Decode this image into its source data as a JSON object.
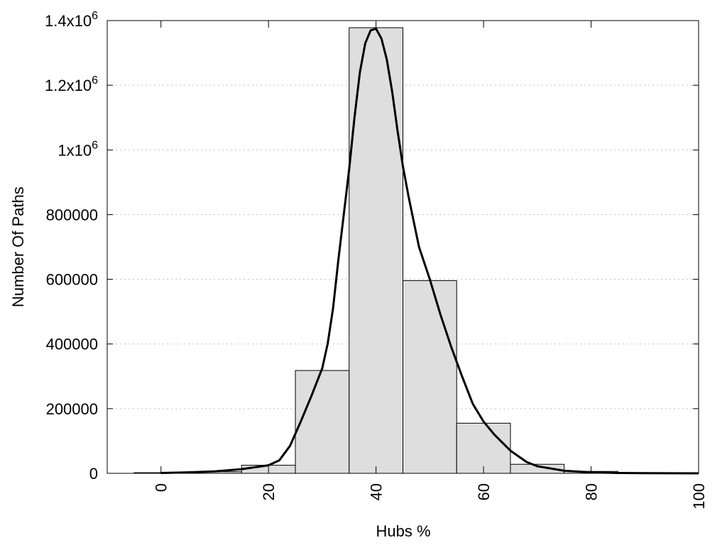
{
  "chart_data": {
    "type": "bar",
    "xlabel": "Hubs %",
    "ylabel": "Number Of Paths",
    "xlim": [
      -10,
      100
    ],
    "ylim": [
      0,
      1400000
    ],
    "grid": "horizontal dotted",
    "x_ticks": [
      {
        "value": 0,
        "label": "0"
      },
      {
        "value": 20,
        "label": "20"
      },
      {
        "value": 40,
        "label": "40"
      },
      {
        "value": 60,
        "label": "60"
      },
      {
        "value": 80,
        "label": "80"
      },
      {
        "value": 100,
        "label": "100"
      }
    ],
    "y_ticks": [
      {
        "value": 0,
        "label": "0"
      },
      {
        "value": 200000,
        "label": "200000"
      },
      {
        "value": 400000,
        "label": "400000"
      },
      {
        "value": 600000,
        "label": "600000"
      },
      {
        "value": 800000,
        "label": "800000"
      },
      {
        "value": 1000000,
        "label": "1x10",
        "sup": "6"
      },
      {
        "value": 1200000,
        "label": "1.2x10",
        "sup": "6"
      },
      {
        "value": 1400000,
        "label": "1.4x10",
        "sup": "6"
      }
    ],
    "bins": [
      {
        "x0": -5,
        "x1": 5,
        "value": 2000
      },
      {
        "x0": 5,
        "x1": 15,
        "value": 5000
      },
      {
        "x0": 15,
        "x1": 25,
        "value": 25000
      },
      {
        "x0": 25,
        "x1": 35,
        "value": 318000
      },
      {
        "x0": 35,
        "x1": 45,
        "value": 1378000
      },
      {
        "x0": 45,
        "x1": 55,
        "value": 596000
      },
      {
        "x0": 55,
        "x1": 65,
        "value": 155000
      },
      {
        "x0": 65,
        "x1": 75,
        "value": 28000
      },
      {
        "x0": 75,
        "x1": 85,
        "value": 6000
      },
      {
        "x0": 85,
        "x1": 95,
        "value": 2000
      },
      {
        "x0": 95,
        "x1": 105,
        "value": 1000
      }
    ],
    "curve": {
      "x": [
        0,
        5,
        10,
        15,
        18,
        20,
        22,
        24,
        26,
        28,
        30,
        31,
        32,
        33,
        34,
        35,
        36,
        37,
        38,
        39,
        40,
        41,
        42,
        43,
        44,
        45,
        46,
        47,
        48,
        50,
        52,
        54,
        56,
        58,
        60,
        62,
        65,
        68,
        70,
        75,
        80,
        85,
        90,
        95,
        100
      ],
      "y": [
        1000,
        3000,
        6000,
        13000,
        20000,
        25000,
        40000,
        85000,
        160000,
        240000,
        325000,
        400000,
        510000,
        660000,
        800000,
        940000,
        1100000,
        1240000,
        1330000,
        1370000,
        1375000,
        1345000,
        1280000,
        1180000,
        1060000,
        950000,
        860000,
        780000,
        700000,
        600000,
        490000,
        390000,
        300000,
        215000,
        160000,
        120000,
        70000,
        35000,
        22000,
        8000,
        3000,
        1000,
        500,
        200,
        100
      ]
    }
  }
}
